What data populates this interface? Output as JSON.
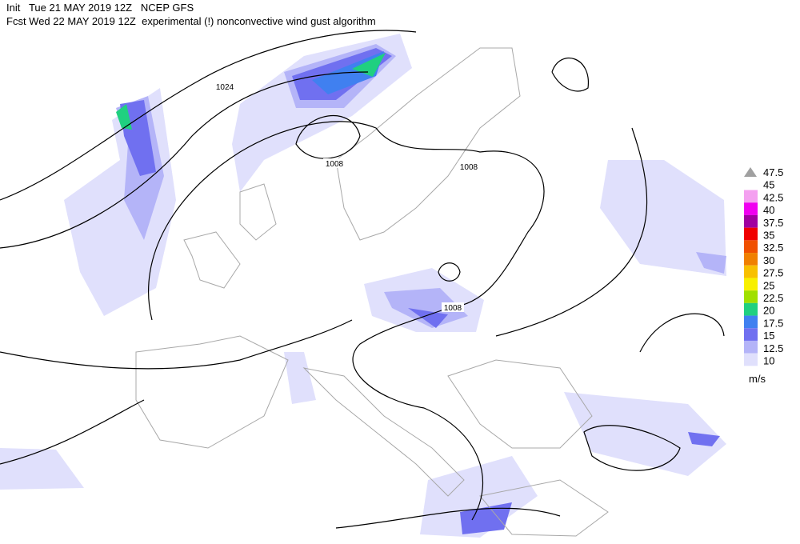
{
  "header": {
    "line1": "Init   Tue 21 MAY 2019 12Z   NCEP GFS",
    "line2": "Fcst Wed 22 MAY 2019 12Z  experimental (!) nonconvective wind gust algorithm"
  },
  "isobar_labels": [
    1024,
    1008,
    1008,
    1008
  ],
  "legend": {
    "unit": "m/s",
    "levels": [
      {
        "value": 47.5,
        "color": "#a0a0a0"
      },
      {
        "value": 45,
        "color": "#ffffff"
      },
      {
        "value": 42.5,
        "color": "#f4a0f0"
      },
      {
        "value": 40,
        "color": "#f000f0"
      },
      {
        "value": 37.5,
        "color": "#a000a0"
      },
      {
        "value": 35,
        "color": "#f00000"
      },
      {
        "value": 32.5,
        "color": "#f05000"
      },
      {
        "value": 30,
        "color": "#f08000"
      },
      {
        "value": 27.5,
        "color": "#f8c000"
      },
      {
        "value": 25,
        "color": "#f8f000"
      },
      {
        "value": 22.5,
        "color": "#a0e000"
      },
      {
        "value": 20,
        "color": "#20d080"
      },
      {
        "value": 17.5,
        "color": "#4080f0"
      },
      {
        "value": 15,
        "color": "#7070f0"
      },
      {
        "value": 12.5,
        "color": "#b4b4f8"
      },
      {
        "value": 10,
        "color": "#e0e0fc"
      }
    ]
  }
}
